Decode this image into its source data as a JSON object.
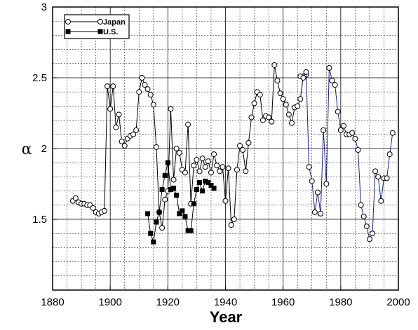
{
  "chart_data": {
    "type": "line",
    "xlabel": "Year",
    "ylabel": "α",
    "xlim": [
      1880,
      2000
    ],
    "ylim": [
      1,
      3
    ],
    "x_ticks": [
      "1880",
      "1900",
      "1920",
      "1940",
      "1960",
      "1980",
      "2000"
    ],
    "y_ticks": [
      "1.5",
      "2",
      "2.5",
      "3"
    ],
    "grid": true,
    "legend_position": "top-left",
    "series": [
      {
        "name": "Japan",
        "marker": "open-circle",
        "color": "#000000",
        "x": [
          1887,
          1888,
          1889,
          1890,
          1891,
          1892,
          1893,
          1894,
          1895,
          1896,
          1897,
          1898,
          1899,
          1900,
          1901,
          1902,
          1903,
          1904,
          1905,
          1906,
          1907,
          1908,
          1909,
          1910,
          1911,
          1912,
          1913,
          1914,
          1915,
          1916,
          1917,
          1918,
          1919,
          1920,
          1921,
          1922,
          1923,
          1924,
          1925,
          1926,
          1927,
          1928,
          1929,
          1930,
          1931,
          1932,
          1933,
          1934,
          1935,
          1936,
          1937,
          1938,
          1939,
          1940,
          1941,
          1942,
          1943,
          1944,
          1945,
          1946,
          1947,
          1948,
          1949,
          1950,
          1951,
          1952,
          1953,
          1954,
          1955,
          1956,
          1957,
          1958,
          1959,
          1960,
          1961,
          1962,
          1963,
          1964,
          1965,
          1966,
          1967,
          1968
        ],
        "y": [
          1.63,
          1.65,
          1.62,
          1.61,
          1.61,
          1.6,
          1.6,
          1.58,
          1.55,
          1.54,
          1.55,
          1.56,
          2.44,
          2.28,
          2.44,
          2.15,
          2.24,
          2.05,
          2.02,
          2.07,
          2.09,
          2.1,
          2.13,
          2.4,
          2.5,
          2.45,
          2.42,
          2.38,
          2.31,
          2.01,
          1.55,
          1.44,
          1.64,
          1.7,
          2.28,
          1.78,
          2.0,
          1.97,
          1.85,
          1.83,
          2.17,
          1.61,
          1.88,
          1.92,
          1.84,
          1.93,
          1.87,
          1.91,
          1.83,
          1.96,
          1.88,
          1.84,
          1.87,
          1.63,
          1.86,
          1.46,
          1.5,
          1.85,
          2.02,
          1.99,
          1.84,
          2.04,
          2.22,
          2.32,
          2.4,
          2.38,
          2.2,
          2.23,
          2.22,
          2.19,
          2.59,
          2.48,
          2.39,
          2.35,
          2.31,
          2.24,
          2.18,
          2.29,
          2.3,
          2.35,
          2.51,
          2.52
        ]
      },
      {
        "name": "U.S.",
        "marker": "filled-square",
        "color": "#000000",
        "x": [
          1913,
          1914,
          1915,
          1916,
          1917,
          1918,
          1919,
          1920,
          1921,
          1922,
          1923,
          1924,
          1925,
          1926,
          1927,
          1928,
          1929,
          1930,
          1931,
          1932,
          1933,
          1934,
          1935,
          1936
        ],
        "y": [
          1.54,
          1.4,
          1.34,
          1.48,
          1.55,
          1.71,
          1.81,
          1.9,
          1.71,
          1.72,
          1.67,
          1.54,
          1.56,
          1.52,
          1.42,
          1.42,
          1.61,
          1.71,
          1.76,
          1.7,
          1.77,
          1.76,
          1.74,
          1.72
        ]
      },
      {
        "name": "",
        "marker": "open-circle",
        "color": "#1a237e",
        "x": [
          1966,
          1967,
          1968,
          1969,
          1970,
          1971,
          1972,
          1973,
          1974,
          1975,
          1976,
          1977,
          1978,
          1979,
          1980,
          1981,
          1982,
          1983,
          1984,
          1985,
          1986,
          1987,
          1988,
          1989,
          1990,
          1991,
          1992,
          1993,
          1994,
          1995,
          1996,
          1997,
          1998
        ],
        "y": [
          2.51,
          2.5,
          2.54,
          1.87,
          1.77,
          1.55,
          1.69,
          1.54,
          2.13,
          1.75,
          2.57,
          2.48,
          2.45,
          2.26,
          2.13,
          2.16,
          2.1,
          2.1,
          2.11,
          2.07,
          1.99,
          1.6,
          1.52,
          1.45,
          1.36,
          1.4,
          1.84,
          1.8,
          1.63,
          1.79,
          1.79,
          1.96,
          2.11
        ]
      }
    ]
  }
}
